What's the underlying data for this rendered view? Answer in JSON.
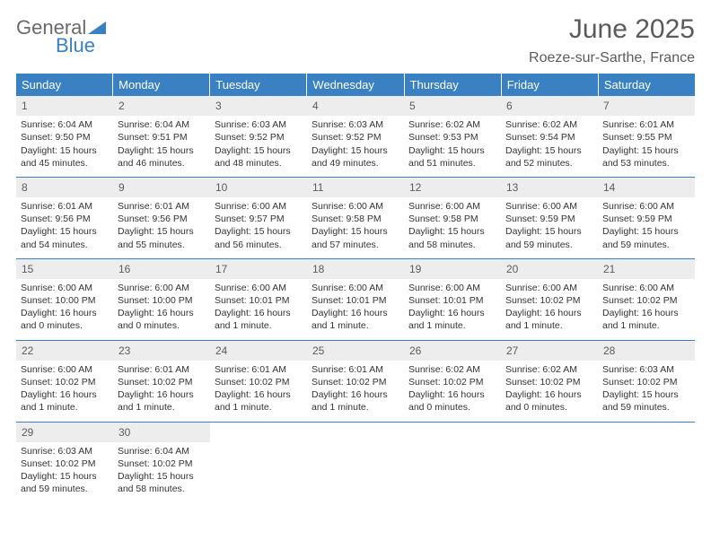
{
  "logo": {
    "line1": "General",
    "line2": "Blue"
  },
  "header": {
    "title": "June 2025",
    "location": "Roeze-sur-Sarthe, France"
  },
  "styling": {
    "header_bg": "#3a81c4",
    "header_text": "#ffffff",
    "daynum_bg": "#ededed",
    "daynum_text": "#5b5b5b",
    "week_border": "#3a81c4",
    "body_text": "#333333",
    "title_color": "#5b5b5b",
    "logo_gray": "#6a6a6a",
    "logo_blue": "#3a81c4",
    "font_size_title": 30,
    "font_size_location": 16,
    "font_size_dow": 13,
    "font_size_daynum": 12,
    "font_size_body": 10.5
  },
  "daysOfWeek": [
    "Sunday",
    "Monday",
    "Tuesday",
    "Wednesday",
    "Thursday",
    "Friday",
    "Saturday"
  ],
  "weeks": [
    [
      {
        "n": "1",
        "sr": "Sunrise: 6:04 AM",
        "ss": "Sunset: 9:50 PM",
        "d1": "Daylight: 15 hours",
        "d2": "and 45 minutes."
      },
      {
        "n": "2",
        "sr": "Sunrise: 6:04 AM",
        "ss": "Sunset: 9:51 PM",
        "d1": "Daylight: 15 hours",
        "d2": "and 46 minutes."
      },
      {
        "n": "3",
        "sr": "Sunrise: 6:03 AM",
        "ss": "Sunset: 9:52 PM",
        "d1": "Daylight: 15 hours",
        "d2": "and 48 minutes."
      },
      {
        "n": "4",
        "sr": "Sunrise: 6:03 AM",
        "ss": "Sunset: 9:52 PM",
        "d1": "Daylight: 15 hours",
        "d2": "and 49 minutes."
      },
      {
        "n": "5",
        "sr": "Sunrise: 6:02 AM",
        "ss": "Sunset: 9:53 PM",
        "d1": "Daylight: 15 hours",
        "d2": "and 51 minutes."
      },
      {
        "n": "6",
        "sr": "Sunrise: 6:02 AM",
        "ss": "Sunset: 9:54 PM",
        "d1": "Daylight: 15 hours",
        "d2": "and 52 minutes."
      },
      {
        "n": "7",
        "sr": "Sunrise: 6:01 AM",
        "ss": "Sunset: 9:55 PM",
        "d1": "Daylight: 15 hours",
        "d2": "and 53 minutes."
      }
    ],
    [
      {
        "n": "8",
        "sr": "Sunrise: 6:01 AM",
        "ss": "Sunset: 9:56 PM",
        "d1": "Daylight: 15 hours",
        "d2": "and 54 minutes."
      },
      {
        "n": "9",
        "sr": "Sunrise: 6:01 AM",
        "ss": "Sunset: 9:56 PM",
        "d1": "Daylight: 15 hours",
        "d2": "and 55 minutes."
      },
      {
        "n": "10",
        "sr": "Sunrise: 6:00 AM",
        "ss": "Sunset: 9:57 PM",
        "d1": "Daylight: 15 hours",
        "d2": "and 56 minutes."
      },
      {
        "n": "11",
        "sr": "Sunrise: 6:00 AM",
        "ss": "Sunset: 9:58 PM",
        "d1": "Daylight: 15 hours",
        "d2": "and 57 minutes."
      },
      {
        "n": "12",
        "sr": "Sunrise: 6:00 AM",
        "ss": "Sunset: 9:58 PM",
        "d1": "Daylight: 15 hours",
        "d2": "and 58 minutes."
      },
      {
        "n": "13",
        "sr": "Sunrise: 6:00 AM",
        "ss": "Sunset: 9:59 PM",
        "d1": "Daylight: 15 hours",
        "d2": "and 59 minutes."
      },
      {
        "n": "14",
        "sr": "Sunrise: 6:00 AM",
        "ss": "Sunset: 9:59 PM",
        "d1": "Daylight: 15 hours",
        "d2": "and 59 minutes."
      }
    ],
    [
      {
        "n": "15",
        "sr": "Sunrise: 6:00 AM",
        "ss": "Sunset: 10:00 PM",
        "d1": "Daylight: 16 hours",
        "d2": "and 0 minutes."
      },
      {
        "n": "16",
        "sr": "Sunrise: 6:00 AM",
        "ss": "Sunset: 10:00 PM",
        "d1": "Daylight: 16 hours",
        "d2": "and 0 minutes."
      },
      {
        "n": "17",
        "sr": "Sunrise: 6:00 AM",
        "ss": "Sunset: 10:01 PM",
        "d1": "Daylight: 16 hours",
        "d2": "and 1 minute."
      },
      {
        "n": "18",
        "sr": "Sunrise: 6:00 AM",
        "ss": "Sunset: 10:01 PM",
        "d1": "Daylight: 16 hours",
        "d2": "and 1 minute."
      },
      {
        "n": "19",
        "sr": "Sunrise: 6:00 AM",
        "ss": "Sunset: 10:01 PM",
        "d1": "Daylight: 16 hours",
        "d2": "and 1 minute."
      },
      {
        "n": "20",
        "sr": "Sunrise: 6:00 AM",
        "ss": "Sunset: 10:02 PM",
        "d1": "Daylight: 16 hours",
        "d2": "and 1 minute."
      },
      {
        "n": "21",
        "sr": "Sunrise: 6:00 AM",
        "ss": "Sunset: 10:02 PM",
        "d1": "Daylight: 16 hours",
        "d2": "and 1 minute."
      }
    ],
    [
      {
        "n": "22",
        "sr": "Sunrise: 6:00 AM",
        "ss": "Sunset: 10:02 PM",
        "d1": "Daylight: 16 hours",
        "d2": "and 1 minute."
      },
      {
        "n": "23",
        "sr": "Sunrise: 6:01 AM",
        "ss": "Sunset: 10:02 PM",
        "d1": "Daylight: 16 hours",
        "d2": "and 1 minute."
      },
      {
        "n": "24",
        "sr": "Sunrise: 6:01 AM",
        "ss": "Sunset: 10:02 PM",
        "d1": "Daylight: 16 hours",
        "d2": "and 1 minute."
      },
      {
        "n": "25",
        "sr": "Sunrise: 6:01 AM",
        "ss": "Sunset: 10:02 PM",
        "d1": "Daylight: 16 hours",
        "d2": "and 1 minute."
      },
      {
        "n": "26",
        "sr": "Sunrise: 6:02 AM",
        "ss": "Sunset: 10:02 PM",
        "d1": "Daylight: 16 hours",
        "d2": "and 0 minutes."
      },
      {
        "n": "27",
        "sr": "Sunrise: 6:02 AM",
        "ss": "Sunset: 10:02 PM",
        "d1": "Daylight: 16 hours",
        "d2": "and 0 minutes."
      },
      {
        "n": "28",
        "sr": "Sunrise: 6:03 AM",
        "ss": "Sunset: 10:02 PM",
        "d1": "Daylight: 15 hours",
        "d2": "and 59 minutes."
      }
    ],
    [
      {
        "n": "29",
        "sr": "Sunrise: 6:03 AM",
        "ss": "Sunset: 10:02 PM",
        "d1": "Daylight: 15 hours",
        "d2": "and 59 minutes."
      },
      {
        "n": "30",
        "sr": "Sunrise: 6:04 AM",
        "ss": "Sunset: 10:02 PM",
        "d1": "Daylight: 15 hours",
        "d2": "and 58 minutes."
      },
      {
        "empty": true
      },
      {
        "empty": true
      },
      {
        "empty": true
      },
      {
        "empty": true
      },
      {
        "empty": true
      }
    ]
  ]
}
